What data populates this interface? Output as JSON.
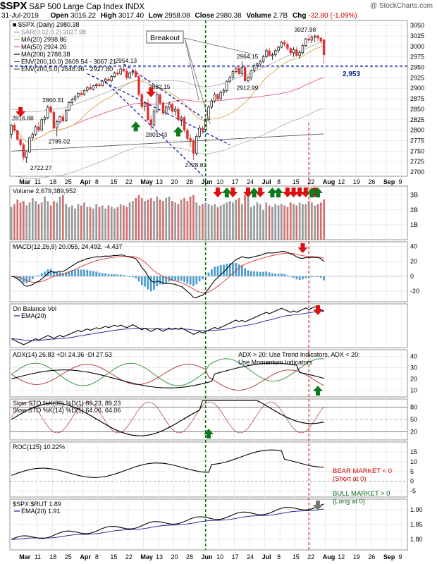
{
  "header": {
    "ticker": "$SPX",
    "name": "S&P 500 Large Cap Index",
    "exchange": "INDX",
    "watermark": "@ StockCharts.com",
    "date": "31-Jul-2019",
    "open_label": "Open",
    "open": "3016.22",
    "high_label": "High",
    "high": "3017.40",
    "low_label": "Low",
    "low": "2958.08",
    "close_label": "Close",
    "close": "2980.38",
    "volume_label": "Volume",
    "volume": "2.7B",
    "chg_label": "Chg",
    "chg": "-32.80 (-1.09%)"
  },
  "legend": {
    "main": "■ $SPX (Daily) 2980.38",
    "sar": "SAR(0.02,0.2) 3027.98",
    "ma20": "MA(20) 2998.86",
    "ma50": "MA(50) 2924.26",
    "ma200": "MA(200) 2788.38",
    "env10": "ENV(200,10.0) 2609.54 - 3067.21",
    "env5": "ENV(200,5.0) 2648.96 - 2927.80"
  },
  "colors": {
    "up": "#000000",
    "down": "#e03030",
    "ma20": "#d4a64a",
    "ma50": "#e05a7a",
    "ma200": "#555555",
    "env": "#aaaaaa",
    "trend": "#1a1ab4",
    "breakout_line": "#007000",
    "marker_line": "#cc0000",
    "green_arrow": "#0a7a1a",
    "red_arrow": "#dd1111"
  },
  "annotations": {
    "breakout": "Breakout",
    "level_value": "2,953"
  },
  "x_axis": {
    "labels": [
      "Mar",
      "11",
      "18",
      "25",
      "Apr",
      "8",
      "15",
      "22",
      "May",
      "13",
      "20",
      "28",
      "Jun",
      "10",
      "17",
      "24",
      "Jul",
      "8",
      "15",
      "22",
      "Aug",
      "12",
      "19",
      "26",
      "Sep",
      "9"
    ],
    "positions": [
      4,
      9,
      14,
      19,
      24,
      29,
      34,
      39,
      44,
      49,
      54,
      59,
      64,
      69,
      74,
      79,
      84,
      89,
      94,
      99,
      104,
      109,
      114,
      119,
      124,
      129
    ]
  },
  "price_labels": [
    {
      "text": "2816.88",
      "x": 3,
      "y": 2816.88,
      "where": "above"
    },
    {
      "text": "2860.31",
      "x": 13,
      "y": 2860.31,
      "where": "above"
    },
    {
      "text": "2785.02",
      "x": 15,
      "y": 2785.02,
      "where": "below"
    },
    {
      "text": "2722.27",
      "x": 9,
      "y": 2722.27,
      "where": "below"
    },
    {
      "text": "2954.13",
      "x": 37,
      "y": 2954.13,
      "where": "above"
    },
    {
      "text": "2892.15",
      "x": 48,
      "y": 2892.15,
      "where": "above"
    },
    {
      "text": "2801.43",
      "x": 47,
      "y": 2801.43,
      "where": "below"
    },
    {
      "text": "2728.81",
      "x": 60,
      "y": 2728.81,
      "where": "below"
    },
    {
      "text": "2964.15",
      "x": 77,
      "y": 2964.15,
      "where": "above"
    },
    {
      "text": "2912.99",
      "x": 77,
      "y": 2912.99,
      "where": "below"
    },
    {
      "text": "3027.98",
      "x": 96,
      "y": 3027.98,
      "where": "above"
    }
  ],
  "price_panel": {
    "y_ticks": [
      3050,
      3025,
      3000,
      2975,
      2950,
      2925,
      2900,
      2875,
      2850,
      2825,
      2800,
      2775,
      2750,
      2725,
      2700
    ],
    "ylim": [
      2690,
      3062
    ]
  },
  "volume_panel": {
    "label": "Volume 2,679,389,952",
    "y_ticks_text": [
      "3B",
      "2B",
      "1B"
    ],
    "y_ticks": [
      3.0,
      2.0,
      1.0
    ],
    "ylim": [
      0,
      3.6
    ],
    "volumes": [
      2.2,
      2.4,
      2.7,
      2.5,
      2.6,
      2.3,
      2.5,
      2.8,
      2.6,
      2.4,
      2.5,
      2.9,
      2.6,
      2.3,
      2.6,
      2.5,
      2.9,
      3.0,
      2.4,
      2.2,
      2.3,
      2.1,
      2.4,
      2.3,
      2.5,
      2.2,
      2.2,
      2.1,
      2.4,
      2.2,
      2.3,
      2.1,
      2.3,
      2.2,
      2.1,
      2.2,
      2.4,
      2.3,
      2.2,
      2.5,
      2.6,
      2.8,
      3.0,
      2.8,
      2.6,
      2.7,
      2.8,
      2.6,
      2.9,
      2.7,
      2.6,
      2.8,
      2.9,
      2.6,
      2.5,
      2.4,
      2.7,
      2.8,
      2.6,
      2.9,
      3.0,
      2.5,
      2.3,
      2.4,
      2.5,
      2.4,
      2.3,
      2.4,
      2.2,
      2.3,
      2.4,
      2.5,
      2.6,
      2.5,
      2.7,
      2.8,
      2.4,
      3.0,
      2.9,
      2.2,
      2.3,
      2.5,
      2.4,
      2.0,
      2.5,
      2.3,
      2.2,
      2.4,
      2.3,
      2.4,
      2.3,
      2.2,
      2.5,
      2.4,
      2.3,
      2.5,
      2.4,
      2.4,
      2.6,
      2.5,
      2.3,
      2.4,
      2.5,
      2.7
    ]
  },
  "macd_panel": {
    "label": "MACD(12,26,9) 20.055, 24.492, -4.437",
    "y_ticks": [
      40,
      20,
      0,
      -20
    ],
    "ylim": [
      -34,
      46
    ]
  },
  "obv_panel": {
    "label": "On Balance Vol",
    "ema_label": "EMA(20)"
  },
  "adx_panel": {
    "label": "ADX(14) 26.83 +DI 24.36 -DI 27.53",
    "note": "ADX > 20: Use Trend Indicators, ADX < 20: Use Momentum Indicators",
    "y_ticks": [
      40,
      30,
      20,
      10
    ],
    "ylim": [
      4,
      46
    ]
  },
  "sto_panel": {
    "label1": "Slow STO %K(39) %D(1) 89.23, 89.23",
    "label2": "Slow STO %K(14) %D(1) 64.06, 64.06",
    "y_ticks": [
      80,
      50,
      20
    ],
    "ylim": [
      0,
      100
    ]
  },
  "roc_panel": {
    "label": "ROC(125) 10.22%",
    "y_ticks": [
      15,
      10,
      5,
      0,
      -5
    ],
    "ylim": [
      -8,
      20
    ],
    "bear": "BEAR MARKET < 0",
    "bear_sub": "(Short at 0)",
    "bull": "BULL MARKET > 0",
    "bull_sub": "(Long at 0)"
  },
  "ratio_panel": {
    "label": "$SPX:$RUT 1.89",
    "ema_label": "EMA(20) 1.91",
    "y_ticks": [
      1.9,
      1.85,
      1.8
    ],
    "y_ticks_text": [
      "1.90",
      "1.85",
      "1.80"
    ],
    "ylim": [
      1.765,
      1.935
    ]
  },
  "chart_data": {
    "type": "candlestick",
    "title": "$SPX S&P 500 Large Cap Index INDX",
    "level_line": 2953,
    "breakout_index": 64,
    "marker_index": 98,
    "candles": [
      {
        "o": 2790,
        "h": 2815,
        "l": 2780,
        "c": 2812
      },
      {
        "o": 2812,
        "h": 2817,
        "l": 2795,
        "c": 2799
      },
      {
        "o": 2799,
        "h": 2801,
        "l": 2775,
        "c": 2778
      },
      {
        "o": 2778,
        "h": 2784,
        "l": 2760,
        "c": 2765
      },
      {
        "o": 2765,
        "h": 2770,
        "l": 2728,
        "c": 2735
      },
      {
        "o": 2735,
        "h": 2750,
        "l": 2722,
        "c": 2748
      },
      {
        "o": 2748,
        "h": 2785,
        "l": 2745,
        "c": 2782
      },
      {
        "o": 2782,
        "h": 2795,
        "l": 2775,
        "c": 2790
      },
      {
        "o": 2790,
        "h": 2812,
        "l": 2786,
        "c": 2808
      },
      {
        "o": 2808,
        "h": 2820,
        "l": 2795,
        "c": 2800
      },
      {
        "o": 2800,
        "h": 2830,
        "l": 2797,
        "c": 2825
      },
      {
        "o": 2825,
        "h": 2835,
        "l": 2815,
        "c": 2830
      },
      {
        "o": 2830,
        "h": 2860,
        "l": 2826,
        "c": 2855
      },
      {
        "o": 2855,
        "h": 2860,
        "l": 2840,
        "c": 2843
      },
      {
        "o": 2843,
        "h": 2848,
        "l": 2800,
        "c": 2805
      },
      {
        "o": 2805,
        "h": 2825,
        "l": 2785,
        "c": 2820
      },
      {
        "o": 2820,
        "h": 2835,
        "l": 2815,
        "c": 2832
      },
      {
        "o": 2832,
        "h": 2840,
        "l": 2818,
        "c": 2822
      },
      {
        "o": 2822,
        "h": 2850,
        "l": 2820,
        "c": 2848
      },
      {
        "o": 2848,
        "h": 2870,
        "l": 2845,
        "c": 2866
      },
      {
        "o": 2866,
        "h": 2878,
        "l": 2860,
        "c": 2873
      },
      {
        "o": 2873,
        "h": 2885,
        "l": 2868,
        "c": 2880
      },
      {
        "o": 2880,
        "h": 2890,
        "l": 2876,
        "c": 2888
      },
      {
        "o": 2888,
        "h": 2895,
        "l": 2880,
        "c": 2885
      },
      {
        "o": 2885,
        "h": 2898,
        "l": 2882,
        "c": 2895
      },
      {
        "o": 2895,
        "h": 2905,
        "l": 2890,
        "c": 2902
      },
      {
        "o": 2902,
        "h": 2910,
        "l": 2896,
        "c": 2898
      },
      {
        "o": 2898,
        "h": 2908,
        "l": 2895,
        "c": 2906
      },
      {
        "o": 2906,
        "h": 2912,
        "l": 2900,
        "c": 2909
      },
      {
        "o": 2909,
        "h": 2915,
        "l": 2903,
        "c": 2906
      },
      {
        "o": 2906,
        "h": 2920,
        "l": 2904,
        "c": 2917
      },
      {
        "o": 2917,
        "h": 2925,
        "l": 2912,
        "c": 2922
      },
      {
        "o": 2922,
        "h": 2928,
        "l": 2916,
        "c": 2918
      },
      {
        "o": 2918,
        "h": 2932,
        "l": 2915,
        "c": 2928
      },
      {
        "o": 2928,
        "h": 2940,
        "l": 2925,
        "c": 2937
      },
      {
        "o": 2937,
        "h": 2945,
        "l": 2930,
        "c": 2934
      },
      {
        "o": 2934,
        "h": 2950,
        "l": 2932,
        "c": 2946
      },
      {
        "o": 2946,
        "h": 2954,
        "l": 2938,
        "c": 2941
      },
      {
        "o": 2941,
        "h": 2948,
        "l": 2920,
        "c": 2925
      },
      {
        "o": 2925,
        "h": 2940,
        "l": 2922,
        "c": 2937
      },
      {
        "o": 2937,
        "h": 2945,
        "l": 2930,
        "c": 2940
      },
      {
        "o": 2940,
        "h": 2946,
        "l": 2925,
        "c": 2928
      },
      {
        "o": 2928,
        "h": 2934,
        "l": 2880,
        "c": 2885
      },
      {
        "o": 2885,
        "h": 2890,
        "l": 2850,
        "c": 2856
      },
      {
        "o": 2856,
        "h": 2870,
        "l": 2845,
        "c": 2865
      },
      {
        "o": 2865,
        "h": 2875,
        "l": 2820,
        "c": 2825
      },
      {
        "o": 2825,
        "h": 2835,
        "l": 2800,
        "c": 2812
      },
      {
        "o": 2812,
        "h": 2850,
        "l": 2808,
        "c": 2846
      },
      {
        "o": 2846,
        "h": 2892,
        "l": 2840,
        "c": 2885
      },
      {
        "o": 2885,
        "h": 2888,
        "l": 2860,
        "c": 2865
      },
      {
        "o": 2865,
        "h": 2870,
        "l": 2835,
        "c": 2840
      },
      {
        "o": 2840,
        "h": 2860,
        "l": 2835,
        "c": 2855
      },
      {
        "o": 2855,
        "h": 2868,
        "l": 2848,
        "c": 2862
      },
      {
        "o": 2862,
        "h": 2865,
        "l": 2840,
        "c": 2845
      },
      {
        "o": 2845,
        "h": 2858,
        "l": 2835,
        "c": 2850
      },
      {
        "o": 2850,
        "h": 2855,
        "l": 2820,
        "c": 2825
      },
      {
        "o": 2825,
        "h": 2835,
        "l": 2810,
        "c": 2830
      },
      {
        "o": 2830,
        "h": 2835,
        "l": 2795,
        "c": 2800
      },
      {
        "o": 2800,
        "h": 2805,
        "l": 2775,
        "c": 2780
      },
      {
        "o": 2780,
        "h": 2790,
        "l": 2760,
        "c": 2775
      },
      {
        "o": 2775,
        "h": 2780,
        "l": 2729,
        "c": 2745
      },
      {
        "o": 2745,
        "h": 2790,
        "l": 2740,
        "c": 2785
      },
      {
        "o": 2785,
        "h": 2812,
        "l": 2780,
        "c": 2805
      },
      {
        "o": 2805,
        "h": 2810,
        "l": 2790,
        "c": 2800
      },
      {
        "o": 2800,
        "h": 2830,
        "l": 2795,
        "c": 2826
      },
      {
        "o": 2826,
        "h": 2860,
        "l": 2822,
        "c": 2855
      },
      {
        "o": 2855,
        "h": 2875,
        "l": 2850,
        "c": 2870
      },
      {
        "o": 2870,
        "h": 2890,
        "l": 2865,
        "c": 2885
      },
      {
        "o": 2885,
        "h": 2888,
        "l": 2870,
        "c": 2875
      },
      {
        "o": 2875,
        "h": 2895,
        "l": 2872,
        "c": 2890
      },
      {
        "o": 2890,
        "h": 2900,
        "l": 2882,
        "c": 2895
      },
      {
        "o": 2895,
        "h": 2920,
        "l": 2890,
        "c": 2917
      },
      {
        "o": 2917,
        "h": 2930,
        "l": 2912,
        "c": 2926
      },
      {
        "o": 2926,
        "h": 2945,
        "l": 2920,
        "c": 2940
      },
      {
        "o": 2940,
        "h": 2952,
        "l": 2935,
        "c": 2948
      },
      {
        "o": 2948,
        "h": 2955,
        "l": 2930,
        "c": 2935
      },
      {
        "o": 2935,
        "h": 2964,
        "l": 2930,
        "c": 2950
      },
      {
        "o": 2950,
        "h": 2955,
        "l": 2913,
        "c": 2918
      },
      {
        "o": 2918,
        "h": 2930,
        "l": 2913,
        "c": 2925
      },
      {
        "o": 2925,
        "h": 2945,
        "l": 2920,
        "c": 2942
      },
      {
        "o": 2942,
        "h": 2960,
        "l": 2938,
        "c": 2955
      },
      {
        "o": 2955,
        "h": 2962,
        "l": 2945,
        "c": 2958
      },
      {
        "o": 2958,
        "h": 2968,
        "l": 2950,
        "c": 2964
      },
      {
        "o": 2964,
        "h": 2980,
        "l": 2960,
        "c": 2975
      },
      {
        "o": 2975,
        "h": 2995,
        "l": 2972,
        "c": 2990
      },
      {
        "o": 2990,
        "h": 2996,
        "l": 2975,
        "c": 2978
      },
      {
        "o": 2978,
        "h": 2985,
        "l": 2968,
        "c": 2980
      },
      {
        "o": 2980,
        "h": 2994,
        "l": 2975,
        "c": 2990
      },
      {
        "o": 2990,
        "h": 3002,
        "l": 2985,
        "c": 2998
      },
      {
        "o": 2998,
        "h": 3013,
        "l": 2995,
        "c": 3010
      },
      {
        "o": 3010,
        "h": 3015,
        "l": 3000,
        "c": 3005
      },
      {
        "o": 3005,
        "h": 3012,
        "l": 2990,
        "c": 2995
      },
      {
        "o": 2995,
        "h": 3000,
        "l": 2980,
        "c": 2985
      },
      {
        "o": 2985,
        "h": 2998,
        "l": 2975,
        "c": 2992
      },
      {
        "o": 2992,
        "h": 2998,
        "l": 2975,
        "c": 2978
      },
      {
        "o": 2978,
        "h": 2990,
        "l": 2970,
        "c": 2985
      },
      {
        "o": 2985,
        "h": 3005,
        "l": 2980,
        "c": 3002
      },
      {
        "o": 3002,
        "h": 3020,
        "l": 2998,
        "c": 3018
      },
      {
        "o": 3018,
        "h": 3028,
        "l": 3010,
        "c": 3015
      },
      {
        "o": 3015,
        "h": 3027,
        "l": 3008,
        "c": 3022
      },
      {
        "o": 3022,
        "h": 3028,
        "l": 3010,
        "c": 3025
      },
      {
        "o": 3025,
        "h": 3028,
        "l": 3012,
        "c": 3020
      },
      {
        "o": 3020,
        "h": 3022,
        "l": 3005,
        "c": 3013
      },
      {
        "o": 3016,
        "h": 3017,
        "l": 2958,
        "c": 2980
      }
    ]
  }
}
